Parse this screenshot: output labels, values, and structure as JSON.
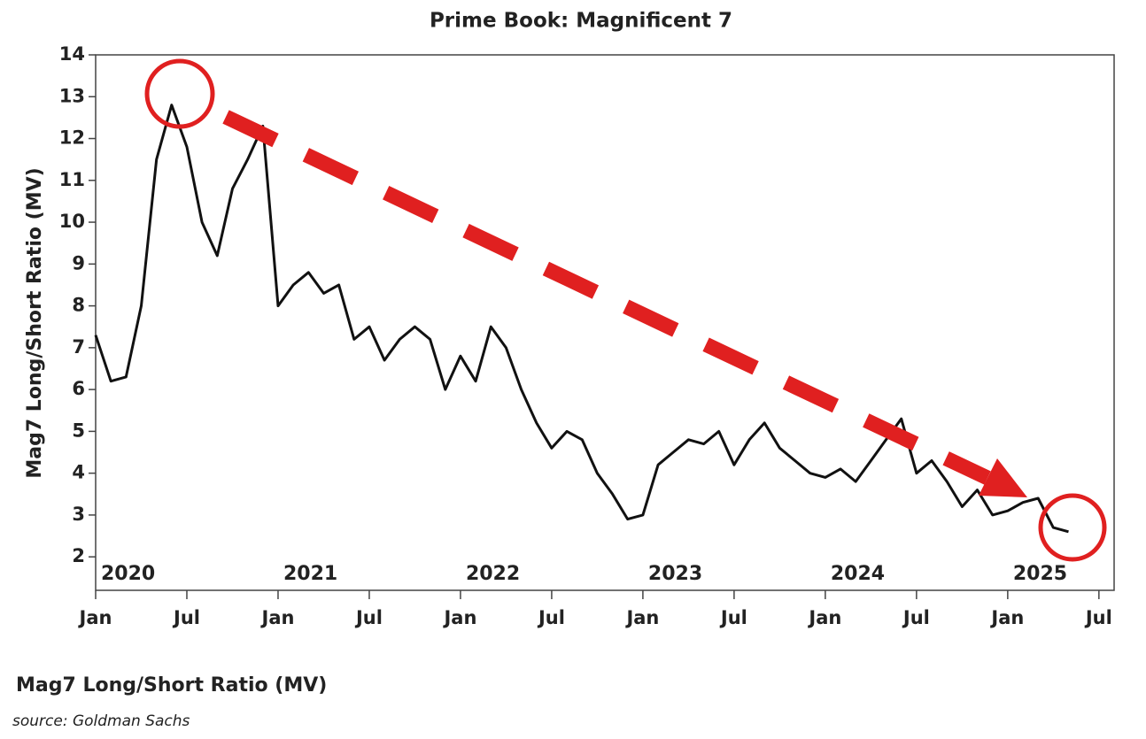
{
  "chart_data": {
    "type": "line",
    "title": "Prime Book: Magnificent 7",
    "y_label": "Mag7 Long/Short Ratio (MV)",
    "legend_label": "Mag7 Long/Short Ratio (MV)",
    "source": "source: Goldman Sachs",
    "x": [
      "2020-01",
      "2020-02",
      "2020-03",
      "2020-04",
      "2020-05",
      "2020-06",
      "2020-07",
      "2020-08",
      "2020-09",
      "2020-10",
      "2020-11",
      "2020-12",
      "2021-01",
      "2021-02",
      "2021-03",
      "2021-04",
      "2021-05",
      "2021-06",
      "2021-07",
      "2021-08",
      "2021-09",
      "2021-10",
      "2021-11",
      "2021-12",
      "2022-01",
      "2022-02",
      "2022-03",
      "2022-04",
      "2022-05",
      "2022-06",
      "2022-07",
      "2022-08",
      "2022-09",
      "2022-10",
      "2022-11",
      "2022-12",
      "2023-01",
      "2023-02",
      "2023-03",
      "2023-04",
      "2023-05",
      "2023-06",
      "2023-07",
      "2023-08",
      "2023-09",
      "2023-10",
      "2023-11",
      "2023-12",
      "2024-01",
      "2024-02",
      "2024-03",
      "2024-04",
      "2024-05",
      "2024-06",
      "2024-07",
      "2024-08",
      "2024-09",
      "2024-10",
      "2024-11",
      "2024-12",
      "2025-01",
      "2025-02",
      "2025-03",
      "2025-04",
      "2025-05"
    ],
    "series": [
      {
        "name": "Mag7 Long/Short Ratio (MV)",
        "color": "#111111",
        "values": [
          7.3,
          6.2,
          6.3,
          8.0,
          11.5,
          12.8,
          11.8,
          10.0,
          9.2,
          10.8,
          11.5,
          12.3,
          8.0,
          8.5,
          8.8,
          8.3,
          8.5,
          7.2,
          7.5,
          6.7,
          7.2,
          7.5,
          7.2,
          6.0,
          6.8,
          6.2,
          7.5,
          7.0,
          6.0,
          5.2,
          4.6,
          5.0,
          4.8,
          4.0,
          3.5,
          2.9,
          3.0,
          4.2,
          4.5,
          4.8,
          4.7,
          5.0,
          4.2,
          4.8,
          5.2,
          4.6,
          4.3,
          4.0,
          3.9,
          4.1,
          3.8,
          4.3,
          4.8,
          5.3,
          4.0,
          4.3,
          3.8,
          3.2,
          3.6,
          3.0,
          3.1,
          3.3,
          3.4,
          2.7,
          2.6
        ]
      }
    ],
    "xlim": [
      "2020-01",
      "2025-08"
    ],
    "xticks": [
      {
        "value": "2020-01",
        "label": "Jan"
      },
      {
        "value": "2020-07",
        "label": "Jul"
      },
      {
        "value": "2021-01",
        "label": "Jan"
      },
      {
        "value": "2021-07",
        "label": "Jul"
      },
      {
        "value": "2022-01",
        "label": "Jan"
      },
      {
        "value": "2022-07",
        "label": "Jul"
      },
      {
        "value": "2023-01",
        "label": "Jan"
      },
      {
        "value": "2023-07",
        "label": "Jul"
      },
      {
        "value": "2024-01",
        "label": "Jan"
      },
      {
        "value": "2024-07",
        "label": "Jul"
      },
      {
        "value": "2025-01",
        "label": "Jan"
      },
      {
        "value": "2025-07",
        "label": "Jul"
      }
    ],
    "year_labels": [
      {
        "value": "2020-01",
        "label": "2020"
      },
      {
        "value": "2021-01",
        "label": "2021"
      },
      {
        "value": "2022-01",
        "label": "2022"
      },
      {
        "value": "2023-01",
        "label": "2023"
      },
      {
        "value": "2024-01",
        "label": "2024"
      },
      {
        "value": "2025-01",
        "label": "2025"
      }
    ],
    "ylim": [
      1.2,
      14
    ],
    "yticks": [
      2,
      3,
      4,
      5,
      6,
      7,
      8,
      9,
      10,
      11,
      12,
      13,
      14
    ],
    "grid": false
  }
}
